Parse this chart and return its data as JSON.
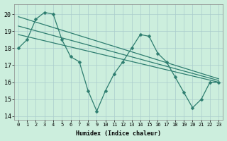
{
  "title": "",
  "xlabel": "Humidex (Indice chaleur)",
  "bg_color": "#cceedd",
  "line_color": "#2d7d6f",
  "grid_color": "#aacccc",
  "xlim": [
    -0.5,
    23.5
  ],
  "ylim": [
    13.8,
    20.6
  ],
  "xticks": [
    0,
    1,
    2,
    3,
    4,
    5,
    6,
    7,
    8,
    9,
    10,
    11,
    12,
    13,
    14,
    15,
    16,
    17,
    18,
    19,
    20,
    21,
    22,
    23
  ],
  "yticks": [
    14,
    15,
    16,
    17,
    18,
    19,
    20
  ],
  "series1_x": [
    0,
    1,
    2,
    3,
    4,
    5,
    6,
    7,
    8,
    9,
    10,
    11,
    12,
    13,
    14,
    15,
    16,
    17,
    18,
    19,
    20,
    21,
    22,
    23
  ],
  "series1_y": [
    18.0,
    18.5,
    19.7,
    20.1,
    20.0,
    18.5,
    17.5,
    17.2,
    15.5,
    14.3,
    15.5,
    16.5,
    17.2,
    18.0,
    18.8,
    18.7,
    17.7,
    17.2,
    16.3,
    15.4,
    14.5,
    15.0,
    16.0,
    16.0
  ],
  "trend1_x": [
    0,
    23
  ],
  "trend1_y": [
    18.8,
    16.0
  ],
  "trend2_x": [
    0,
    23
  ],
  "trend2_y": [
    19.3,
    16.1
  ],
  "trend3_x": [
    0,
    23
  ],
  "trend3_y": [
    19.85,
    16.2
  ],
  "xlabel_fontsize": 6,
  "tick_fontsize": 5
}
